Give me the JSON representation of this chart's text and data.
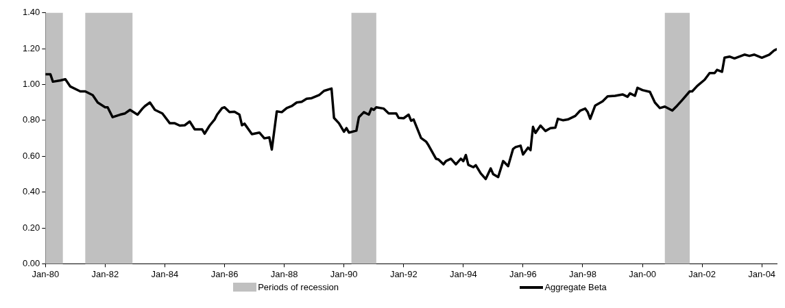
{
  "chart_data": {
    "type": "line",
    "x": [
      "1980-01",
      "1980-03",
      "1980-04",
      "1980-07",
      "1980-09",
      "1980-11",
      "1981-03",
      "1981-05",
      "1981-08",
      "1981-10",
      "1982-01",
      "1982-02",
      "1982-04",
      "1982-07",
      "1982-09",
      "1982-11",
      "1983-02",
      "1983-04",
      "1983-05",
      "1983-07",
      "1983-09",
      "1983-12",
      "1984-03",
      "1984-05",
      "1984-07",
      "1984-09",
      "1984-11",
      "1985-01",
      "1985-04",
      "1985-05",
      "1985-07",
      "1985-09",
      "1985-10",
      "1985-12",
      "1986-01",
      "1986-03",
      "1986-05",
      "1986-07",
      "1986-08",
      "1986-09",
      "1986-12",
      "1987-03",
      "1987-05",
      "1987-07",
      "1987-08",
      "1987-10",
      "1987-12",
      "1988-02",
      "1988-04",
      "1988-06",
      "1988-08",
      "1988-10",
      "1988-12",
      "1989-03",
      "1989-05",
      "1989-08",
      "1989-09",
      "1989-11",
      "1990-01",
      "1990-02",
      "1990-03",
      "1990-06",
      "1990-07",
      "1990-09",
      "1990-11",
      "1990-12",
      "1991-01",
      "1991-02",
      "1991-05",
      "1991-07",
      "1991-10",
      "1991-11",
      "1992-01",
      "1992-03",
      "1992-04",
      "1992-05",
      "1992-08",
      "1992-10",
      "1992-11",
      "1993-02",
      "1993-03",
      "1993-05",
      "1993-06",
      "1993-08",
      "1993-10",
      "1993-12",
      "1994-01",
      "1994-02",
      "1994-03",
      "1994-05",
      "1994-06",
      "1994-08",
      "1994-10",
      "1994-12",
      "1995-01",
      "1995-03",
      "1995-05",
      "1995-07",
      "1995-09",
      "1995-10",
      "1995-12",
      "1996-01",
      "1996-03",
      "1996-04",
      "1996-05",
      "1996-06",
      "1996-08",
      "1996-10",
      "1996-12",
      "1997-02",
      "1997-03",
      "1997-05",
      "1997-07",
      "1997-10",
      "1997-12",
      "1998-02",
      "1998-03",
      "1998-04",
      "1998-06",
      "1998-09",
      "1998-11",
      "1999-02",
      "1999-05",
      "1999-07",
      "1999-08",
      "1999-10",
      "1999-11",
      "2000-01",
      "2000-04",
      "2000-06",
      "2000-08",
      "2000-10",
      "2001-01",
      "2001-03",
      "2001-05",
      "2001-08",
      "2001-09",
      "2001-11",
      "2002-02",
      "2002-04",
      "2002-06",
      "2002-07",
      "2002-09",
      "2002-10",
      "2002-12",
      "2003-02",
      "2003-06",
      "2003-08",
      "2003-10",
      "2004-01",
      "2004-04",
      "2004-06",
      "2004-07"
    ],
    "series": [
      {
        "name": "Aggregate Beta",
        "color": "#000000",
        "values": [
          1.057,
          1.057,
          1.016,
          1.023,
          1.03,
          0.989,
          0.962,
          0.962,
          0.941,
          0.9,
          0.873,
          0.873,
          0.818,
          0.832,
          0.839,
          0.859,
          0.832,
          0.866,
          0.88,
          0.9,
          0.859,
          0.839,
          0.784,
          0.784,
          0.771,
          0.773,
          0.794,
          0.75,
          0.75,
          0.726,
          0.771,
          0.805,
          0.832,
          0.869,
          0.873,
          0.846,
          0.848,
          0.832,
          0.773,
          0.782,
          0.723,
          0.732,
          0.7,
          0.705,
          0.637,
          0.85,
          0.846,
          0.869,
          0.88,
          0.9,
          0.904,
          0.921,
          0.924,
          0.941,
          0.965,
          0.978,
          0.814,
          0.784,
          0.737,
          0.757,
          0.732,
          0.743,
          0.818,
          0.846,
          0.832,
          0.866,
          0.859,
          0.873,
          0.866,
          0.839,
          0.839,
          0.814,
          0.812,
          0.832,
          0.798,
          0.805,
          0.702,
          0.682,
          0.661,
          0.586,
          0.582,
          0.555,
          0.573,
          0.586,
          0.555,
          0.586,
          0.573,
          0.607,
          0.552,
          0.539,
          0.55,
          0.504,
          0.473,
          0.532,
          0.5,
          0.484,
          0.573,
          0.545,
          0.641,
          0.651,
          0.659,
          0.61,
          0.648,
          0.634,
          0.764,
          0.73,
          0.771,
          0.741,
          0.757,
          0.76,
          0.809,
          0.801,
          0.805,
          0.825,
          0.855,
          0.866,
          0.846,
          0.809,
          0.883,
          0.907,
          0.934,
          0.937,
          0.945,
          0.932,
          0.951,
          0.937,
          0.982,
          0.969,
          0.959,
          0.9,
          0.869,
          0.877,
          0.855,
          0.883,
          0.914,
          0.962,
          0.962,
          0.992,
          1.027,
          1.064,
          1.064,
          1.082,
          1.071,
          1.15,
          1.156,
          1.146,
          1.167,
          1.16,
          1.167,
          1.15,
          1.167,
          1.191,
          1.197
        ]
      }
    ],
    "bands": [
      {
        "axis": "x",
        "from": "1980-01",
        "to": "1980-08",
        "label": "Periods of recession",
        "color": "#c0c0c0"
      },
      {
        "axis": "x",
        "from": "1981-05",
        "to": "1982-12",
        "color": "#c0c0c0"
      },
      {
        "axis": "x",
        "from": "1990-04",
        "to": "1991-02",
        "color": "#c0c0c0"
      },
      {
        "axis": "x",
        "from": "2000-10",
        "to": "2001-08",
        "color": "#c0c0c0"
      }
    ],
    "xlim": [
      "1980-01",
      "2004-07"
    ],
    "xticks": [
      {
        "value": "1980-01",
        "label": "Jan-80"
      },
      {
        "value": "1982-01",
        "label": "Jan-82"
      },
      {
        "value": "1984-01",
        "label": "Jan-84"
      },
      {
        "value": "1986-01",
        "label": "Jan-86"
      },
      {
        "value": "1988-01",
        "label": "Jan-88"
      },
      {
        "value": "1990-01",
        "label": "Jan-90"
      },
      {
        "value": "1992-01",
        "label": "Jan-92"
      },
      {
        "value": "1994-01",
        "label": "Jan-94"
      },
      {
        "value": "1996-01",
        "label": "Jan-96"
      },
      {
        "value": "1998-01",
        "label": "Jan-98"
      },
      {
        "value": "2000-01",
        "label": "Jan-00"
      },
      {
        "value": "2002-01",
        "label": "Jan-02"
      },
      {
        "value": "2004-01",
        "label": "Jan-04"
      }
    ],
    "ylim": [
      0,
      1.4
    ],
    "yticks": [
      {
        "value": 0,
        "label": "0.00"
      },
      {
        "value": 0.2,
        "label": "0.20"
      },
      {
        "value": 0.4,
        "label": "0.40"
      },
      {
        "value": 0.6,
        "label": "0.60"
      },
      {
        "value": 0.8,
        "label": "0.80"
      },
      {
        "value": 1.0,
        "label": "1.00"
      },
      {
        "value": 1.2,
        "label": "1.20"
      },
      {
        "value": 1.4,
        "label": "1.40"
      }
    ],
    "grid": false,
    "legend": "bottom",
    "marker": "none",
    "line_style": "solid"
  }
}
